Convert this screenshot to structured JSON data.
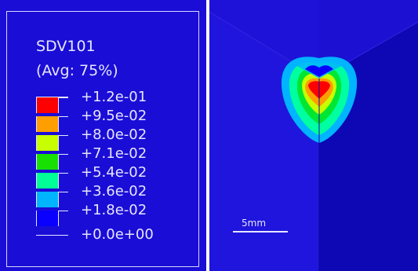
{
  "legend": {
    "title": "SDV101",
    "subtitle": "(Avg: 75%)",
    "entries": [
      {
        "label": "+1.2e-01",
        "color": "#ff0000"
      },
      {
        "label": "+9.5e-02",
        "color": "#ff9e00"
      },
      {
        "label": "+8.0e-02",
        "color": "#c8ff00"
      },
      {
        "label": "+7.1e-02",
        "color": "#4cff00"
      },
      {
        "label": "+5.4e-02",
        "color": "#00e632"
      },
      {
        "label": "+3.6e-02",
        "color": "#00ffa0"
      },
      {
        "label": "+1.8e-02",
        "color": "#00b4ff"
      },
      {
        "label": "+0.0e+00",
        "color": "#0a00ff"
      }
    ]
  },
  "scale": {
    "label": "5mm"
  },
  "colors": {
    "background": "#1a0dd6",
    "text": "#e6e6ff"
  }
}
